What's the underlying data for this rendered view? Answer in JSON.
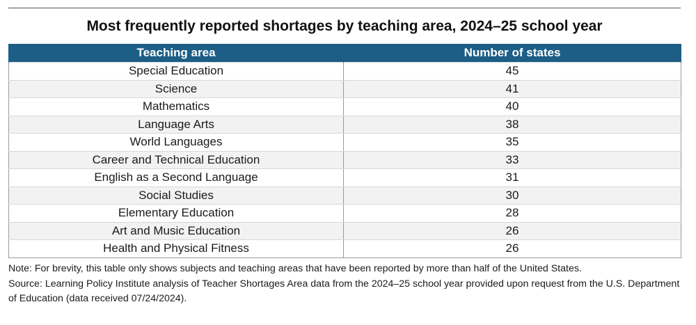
{
  "chart_data": {
    "type": "table",
    "title": "Most frequently reported shortages by teaching area, 2024–25 school year",
    "columns": [
      "Teaching area",
      "Number of states"
    ],
    "rows": [
      {
        "area": "Special Education",
        "states": 45
      },
      {
        "area": "Science",
        "states": 41
      },
      {
        "area": "Mathematics",
        "states": 40
      },
      {
        "area": "Language Arts",
        "states": 38
      },
      {
        "area": "World Languages",
        "states": 35
      },
      {
        "area": "Career and Technical Education",
        "states": 33
      },
      {
        "area": "English as a Second Language",
        "states": 31
      },
      {
        "area": "Social Studies",
        "states": 30
      },
      {
        "area": "Elementary Education",
        "states": 28
      },
      {
        "area": "Art and Music Education",
        "states": 26
      },
      {
        "area": "Health and Physical Fitness",
        "states": 26
      }
    ],
    "header_color": "#1c5e86",
    "stripe_color": "#f2f2f2"
  },
  "notes": {
    "note": "Note: For brevity, this table only shows subjects and teaching areas that have been reported by more than half of the United States.",
    "source": "Source: Learning Policy Institute analysis of Teacher Shortages Area data from the 2024–25 school year provided upon request from the U.S. Department of Education (data received 07/24/2024)."
  }
}
